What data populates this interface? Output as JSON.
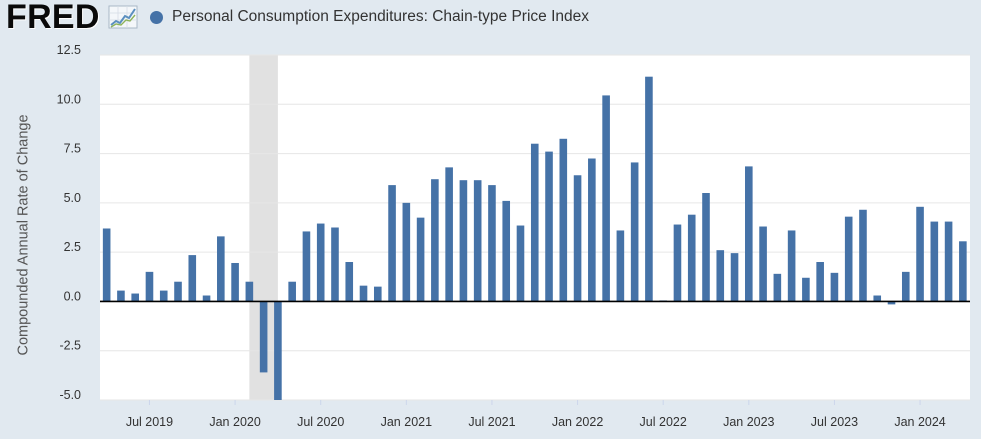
{
  "header": {
    "logo_text": "FRED",
    "logo_icon": "line-chart-icon",
    "legend_marker_icon": "legend-marker"
  },
  "colors": {
    "background": "#e1e9f0",
    "plot_background": "#ffffff",
    "gridline": "#e6e6e6",
    "zero_line": "#000000",
    "recession": "#e1e1e1",
    "tick": "#ccd6eb"
  },
  "chart_data": {
    "type": "bar",
    "ylabel": "Compounded Annual Rate of Change",
    "ylim": [
      -5,
      12.5
    ],
    "xlim": [
      "2019-03-17",
      "2024-04-16"
    ],
    "grid": true,
    "legend": "top-left",
    "y_ticks": [
      "12.5",
      "10.0",
      "7.5",
      "5.0",
      "2.5",
      "0.0",
      "-2.5",
      "-5.0"
    ],
    "x_ticks": [
      "Jul 2019",
      "Jan 2020",
      "Jul 2020",
      "Jan 2021",
      "Jul 2021",
      "Jan 2022",
      "Jul 2022",
      "Jan 2023",
      "Jul 2023",
      "Jan 2024"
    ],
    "recession_shading": [
      {
        "start": "2020-02",
        "end": "2020-04"
      }
    ],
    "x": [
      "2019-04",
      "2019-05",
      "2019-06",
      "2019-07",
      "2019-08",
      "2019-09",
      "2019-10",
      "2019-11",
      "2019-12",
      "2020-01",
      "2020-02",
      "2020-03",
      "2020-04",
      "2020-05",
      "2020-06",
      "2020-07",
      "2020-08",
      "2020-09",
      "2020-10",
      "2020-11",
      "2020-12",
      "2021-01",
      "2021-02",
      "2021-03",
      "2021-04",
      "2021-05",
      "2021-06",
      "2021-07",
      "2021-08",
      "2021-09",
      "2021-10",
      "2021-11",
      "2021-12",
      "2022-01",
      "2022-02",
      "2022-03",
      "2022-04",
      "2022-05",
      "2022-06",
      "2022-07",
      "2022-08",
      "2022-09",
      "2022-10",
      "2022-11",
      "2022-12",
      "2023-01",
      "2023-02",
      "2023-03",
      "2023-04",
      "2023-05",
      "2023-06",
      "2023-07",
      "2023-08",
      "2023-09",
      "2023-10",
      "2023-11",
      "2023-12",
      "2024-01",
      "2024-02",
      "2024-03",
      "2024-04"
    ],
    "series": [
      {
        "name": "Personal Consumption Expenditures: Chain-type Price Index",
        "color": "#4572a7",
        "values": [
          3.7,
          0.55,
          0.4,
          1.5,
          0.55,
          1.0,
          2.35,
          0.3,
          3.3,
          1.95,
          1.0,
          -3.6,
          -5.7,
          1.0,
          3.55,
          3.95,
          3.75,
          2.0,
          0.8,
          0.75,
          5.9,
          5.0,
          4.25,
          6.2,
          6.8,
          6.15,
          6.15,
          5.9,
          5.1,
          3.85,
          8.0,
          7.6,
          8.25,
          6.4,
          7.25,
          10.45,
          3.6,
          7.05,
          11.4,
          0.05,
          3.9,
          4.4,
          5.5,
          2.6,
          2.45,
          6.85,
          3.8,
          1.4,
          3.6,
          1.2,
          2.0,
          1.45,
          4.3,
          4.65,
          0.3,
          -0.15,
          1.5,
          4.8,
          4.05,
          4.05,
          3.05
        ]
      }
    ]
  }
}
